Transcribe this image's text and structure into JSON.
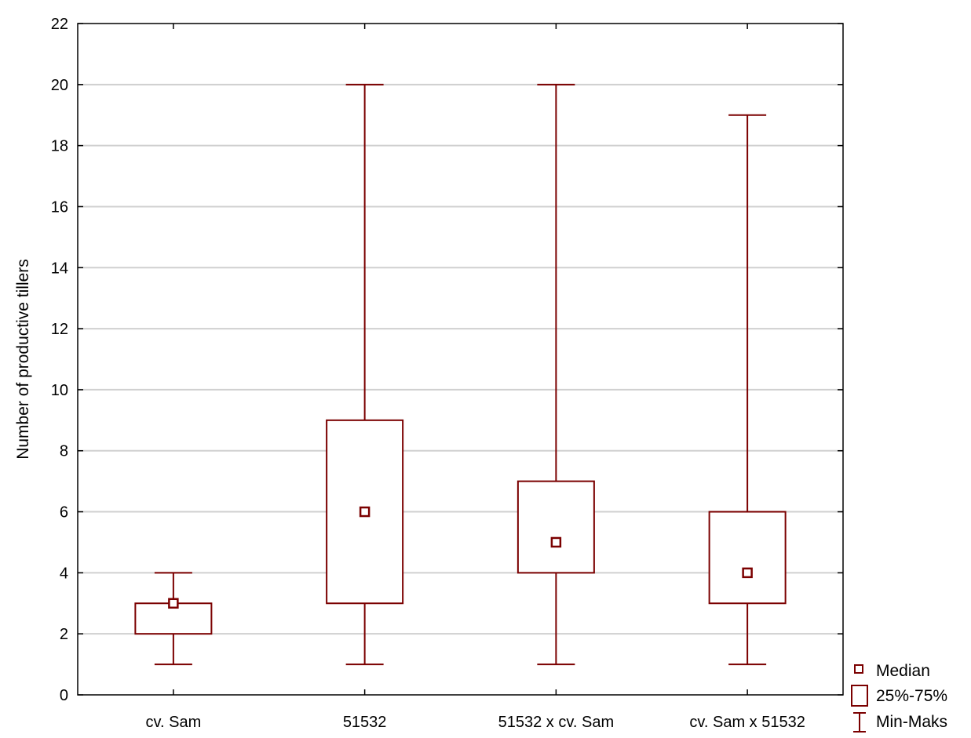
{
  "chart_data": {
    "type": "box",
    "title": "",
    "xlabel": "",
    "ylabel": "Number of productive tillers",
    "ylim": [
      0,
      22
    ],
    "yticks": [
      0,
      2,
      4,
      6,
      8,
      10,
      12,
      14,
      16,
      18,
      20,
      22
    ],
    "grid": true,
    "legend_position": "bottom-right",
    "color": "#7b0000",
    "categories": [
      "cv. Sam",
      "51532",
      "51532 x cv. Sam",
      "cv. Sam x 51532"
    ],
    "series": [
      {
        "category": "cv. Sam",
        "min": 1,
        "q1": 2,
        "median": 3,
        "q3": 3,
        "max": 4
      },
      {
        "category": "51532",
        "min": 1,
        "q1": 3,
        "median": 6,
        "q3": 9,
        "max": 20
      },
      {
        "category": "51532 x cv. Sam",
        "min": 1,
        "q1": 4,
        "median": 5,
        "q3": 7,
        "max": 20
      },
      {
        "category": "cv. Sam x 51532",
        "min": 1,
        "q1": 3,
        "median": 4,
        "q3": 6,
        "max": 19
      }
    ],
    "legend": {
      "median": "Median",
      "box": "25%-75%",
      "whisker": "Min-Maks"
    }
  }
}
